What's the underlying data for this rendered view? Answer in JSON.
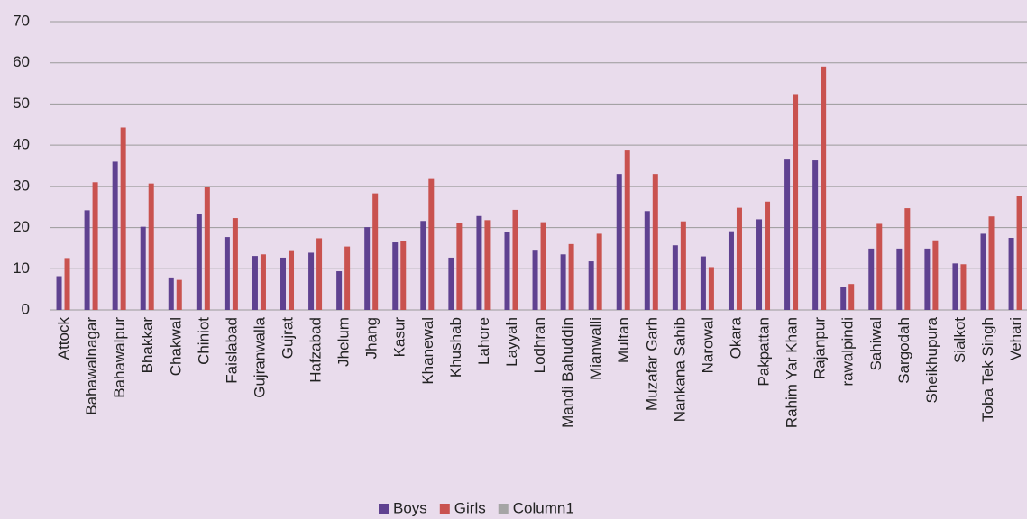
{
  "chart_data": {
    "type": "bar",
    "categories": [
      "Attock",
      "Bahawalnagar",
      "Bahawalpur",
      "Bhakkar",
      "Chakwal",
      "Chiniot",
      "Faislabad",
      "Gujranwalla",
      "Gujrat",
      "Hafzabad",
      "Jhelum",
      "Jhang",
      "Kasur",
      "Khanewal",
      "Khushab",
      "Lahore",
      "Layyah",
      "Lodhran",
      "Mandi Bahuddin",
      "Mianwalli",
      "Multan",
      "Muzafar Garh",
      "Nankana Sahib",
      "Narowal",
      "Okara",
      "Pakpattan",
      "Rahim Yar Khan",
      "Rajanpur",
      "rawalpindi",
      "Sahiwal",
      "Sargodah",
      "Sheikhupura",
      "Sialkot",
      "Toba Tek Singh",
      "Vehari"
    ],
    "series": [
      {
        "name": "Boys",
        "color": "#5f4190",
        "values": [
          8.2,
          24.2,
          36,
          20.2,
          7.9,
          23.3,
          17.7,
          13.1,
          12.7,
          13.9,
          9.4,
          20.1,
          16.4,
          21.6,
          12.7,
          22.8,
          19,
          14.4,
          13.5,
          11.8,
          33,
          24,
          15.7,
          13,
          19.1,
          22,
          36.5,
          36.3,
          5.5,
          14.9,
          14.9,
          14.9,
          11.3,
          18.5,
          17.5
        ]
      },
      {
        "name": "Girls",
        "color": "#c9524f",
        "values": [
          12.6,
          31,
          44.3,
          30.7,
          7.3,
          29.9,
          22.3,
          13.5,
          14.3,
          17.4,
          15.4,
          28.3,
          16.8,
          31.8,
          21.1,
          21.8,
          24.3,
          21.3,
          16,
          18.5,
          38.7,
          33,
          21.5,
          10.4,
          24.8,
          26.3,
          52.4,
          59.1,
          6.3,
          20.9,
          24.7,
          16.9,
          11.1,
          22.7,
          27.7
        ]
      },
      {
        "name": "Column1",
        "color": "#a5a5a5",
        "values": [
          null,
          null,
          null,
          null,
          null,
          null,
          null,
          null,
          null,
          null,
          null,
          null,
          null,
          null,
          null,
          null,
          null,
          null,
          null,
          null,
          null,
          null,
          null,
          null,
          null,
          null,
          null,
          null,
          null,
          null,
          null,
          null,
          null,
          null,
          null
        ]
      }
    ],
    "ylim": [
      0,
      70
    ],
    "yticks": [
      0,
      10,
      20,
      30,
      40,
      50,
      60,
      70
    ],
    "grid": true,
    "legend": "bottom"
  }
}
